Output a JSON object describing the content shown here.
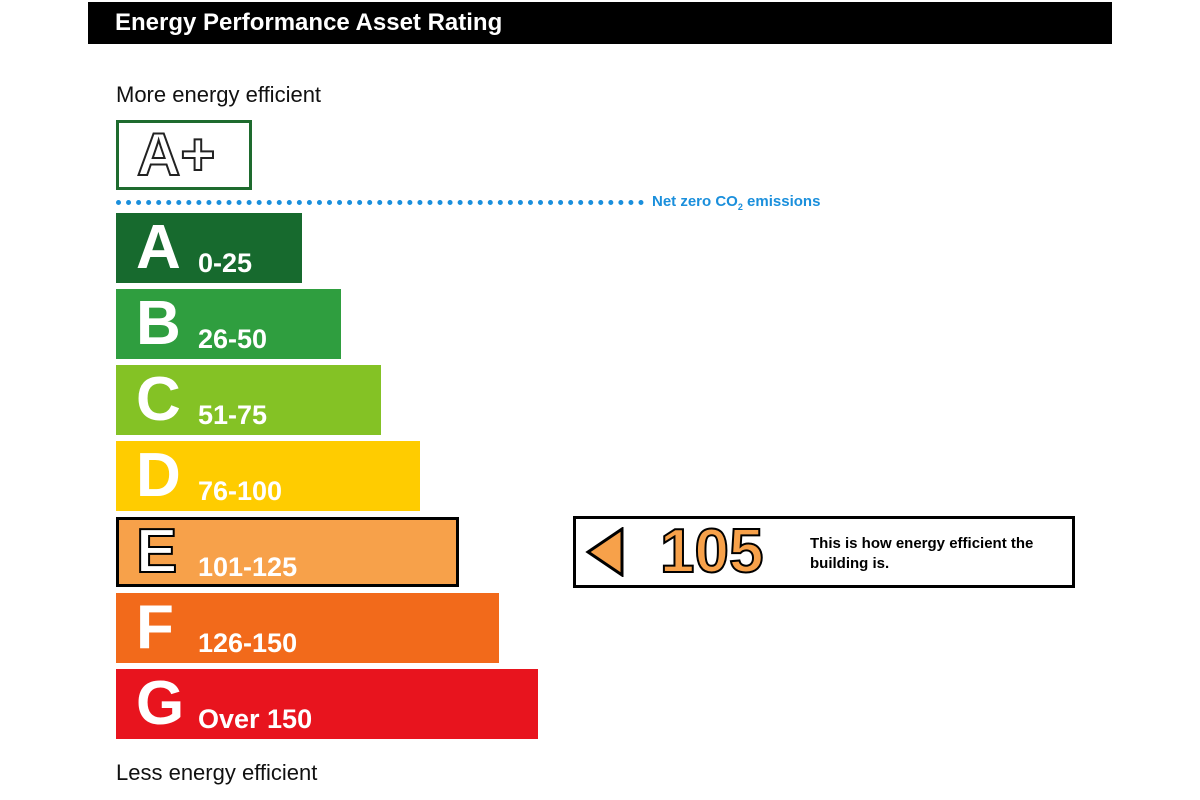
{
  "title": "Energy Performance Asset Rating",
  "labels": {
    "more_efficient": "More energy efficient",
    "less_efficient": "Less energy efficient"
  },
  "net_zero": {
    "text": "Net zero CO",
    "subscript": "2",
    "suffix": " emissions",
    "color": "#1a8fdc"
  },
  "chart_data": {
    "type": "bar",
    "title": "Energy Performance Asset Rating",
    "top_rating": {
      "label": "A+",
      "style": "outlined"
    },
    "categories": [
      "A",
      "B",
      "C",
      "D",
      "E",
      "F",
      "G"
    ],
    "series": [
      {
        "values": [
          25,
          50,
          75,
          100,
          125,
          150,
          175
        ],
        "ranges": [
          "0-25",
          "26-50",
          "51-75",
          "76-100",
          "101-125",
          "126-150",
          "Over 150"
        ],
        "colors": [
          "#176a2e",
          "#2f9e3f",
          "#84c225",
          "#ffcc00",
          "#f7a14a",
          "#f26a1b",
          "#e8141e"
        ]
      }
    ],
    "current_rating": {
      "band": "E",
      "value": 105,
      "value_text": "105",
      "description": "This is how energy efficient the building is."
    }
  }
}
